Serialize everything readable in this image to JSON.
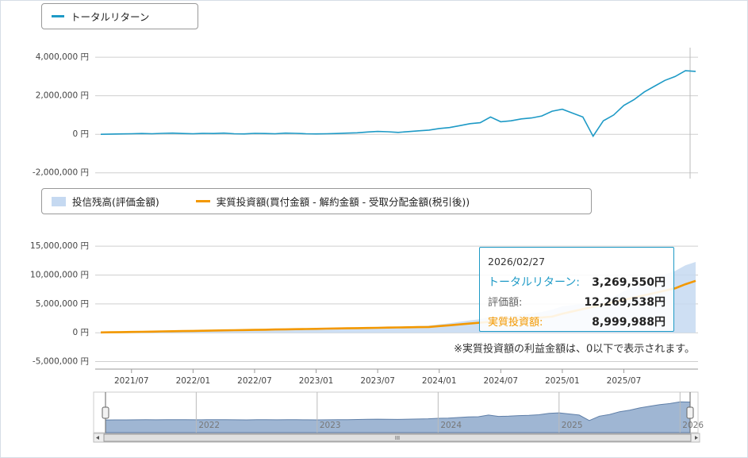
{
  "chart_data": [
    {
      "type": "line",
      "legend": "トータルリターン",
      "x": [
        "2021/04",
        "2021/05",
        "2021/06",
        "2021/07",
        "2021/08",
        "2021/09",
        "2021/10",
        "2021/11",
        "2021/12",
        "2022/01",
        "2022/02",
        "2022/03",
        "2022/04",
        "2022/05",
        "2022/06",
        "2022/07",
        "2022/08",
        "2022/09",
        "2022/10",
        "2022/11",
        "2022/12",
        "2023/01",
        "2023/02",
        "2023/03",
        "2023/04",
        "2023/05",
        "2023/06",
        "2023/07",
        "2023/08",
        "2023/09",
        "2023/10",
        "2023/11",
        "2023/12",
        "2024/01",
        "2024/02",
        "2024/03",
        "2024/04",
        "2024/05",
        "2024/06",
        "2024/07",
        "2024/08",
        "2024/09",
        "2024/10",
        "2024/11",
        "2024/12",
        "2025/01",
        "2025/02",
        "2025/03",
        "2025/04",
        "2025/05",
        "2025/06",
        "2025/07",
        "2025/08",
        "2025/09",
        "2025/10",
        "2025/11",
        "2025/12",
        "2026/01",
        "2026/02"
      ],
      "series": [
        {
          "name": "トータルリターン",
          "color": "#1e9ac6",
          "values": [
            0,
            10000,
            20000,
            30000,
            40000,
            30000,
            50000,
            60000,
            40000,
            30000,
            50000,
            40000,
            60000,
            30000,
            20000,
            50000,
            40000,
            30000,
            60000,
            50000,
            30000,
            20000,
            30000,
            40000,
            60000,
            80000,
            120000,
            150000,
            130000,
            100000,
            140000,
            180000,
            220000,
            300000,
            350000,
            450000,
            550000,
            600000,
            900000,
            650000,
            700000,
            800000,
            850000,
            950000,
            1200000,
            1300000,
            1100000,
            900000,
            -100000,
            700000,
            1000000,
            1500000,
            1800000,
            2200000,
            2500000,
            2800000,
            3000000,
            3300000,
            3269550
          ]
        }
      ],
      "ylim": [
        -2300000,
        4500000
      ],
      "yticks": [
        {
          "value": 4000000,
          "label": "4,000,000 円"
        },
        {
          "value": 2000000,
          "label": "2,000,000 円"
        },
        {
          "value": 0,
          "label": "0 円"
        },
        {
          "value": -2000000,
          "label": "-2,000,000 円"
        }
      ],
      "grid": true
    },
    {
      "type": "area_line",
      "x": [
        "2021/04",
        "2021/05",
        "2021/06",
        "2021/07",
        "2021/08",
        "2021/09",
        "2021/10",
        "2021/11",
        "2021/12",
        "2022/01",
        "2022/02",
        "2022/03",
        "2022/04",
        "2022/05",
        "2022/06",
        "2022/07",
        "2022/08",
        "2022/09",
        "2022/10",
        "2022/11",
        "2022/12",
        "2023/01",
        "2023/02",
        "2023/03",
        "2023/04",
        "2023/05",
        "2023/06",
        "2023/07",
        "2023/08",
        "2023/09",
        "2023/10",
        "2023/11",
        "2023/12",
        "2024/01",
        "2024/02",
        "2024/03",
        "2024/04",
        "2024/05",
        "2024/06",
        "2024/07",
        "2024/08",
        "2024/09",
        "2024/10",
        "2024/11",
        "2024/12",
        "2025/01",
        "2025/02",
        "2025/03",
        "2025/04",
        "2025/05",
        "2025/06",
        "2025/07",
        "2025/08",
        "2025/09",
        "2025/10",
        "2025/11",
        "2025/12",
        "2026/01",
        "2026/02"
      ],
      "series": [
        {
          "name": "投信残高(評価金額)",
          "color": "#c5d9f1",
          "kind": "area",
          "values": [
            50000,
            90000,
            130000,
            170000,
            210000,
            230000,
            280000,
            320000,
            330000,
            350000,
            400000,
            420000,
            470000,
            470000,
            490000,
            550000,
            570000,
            590000,
            650000,
            670000,
            680000,
            700000,
            740000,
            780000,
            830000,
            880000,
            950000,
            1010000,
            1020000,
            1020000,
            1090000,
            1160000,
            1230000,
            1450000,
            1650000,
            1900000,
            2150000,
            2350000,
            2800000,
            2700000,
            2900000,
            3150000,
            3350000,
            3600000,
            4000000,
            4600000,
            4800000,
            5000000,
            4400000,
            5600000,
            6300000,
            7200000,
            7900000,
            8700000,
            9400000,
            10100000,
            10700000,
            11700000,
            12269538
          ]
        },
        {
          "name": "実質投資額(買付金額 - 解約金額 - 受取分配金額(税引後))",
          "color": "#f39800",
          "kind": "line",
          "values": [
            50000,
            80000,
            110000,
            140000,
            170000,
            200000,
            230000,
            260000,
            290000,
            320000,
            350000,
            380000,
            410000,
            440000,
            470000,
            500000,
            530000,
            560000,
            590000,
            620000,
            650000,
            680000,
            710000,
            740000,
            770000,
            800000,
            830000,
            860000,
            890000,
            920000,
            950000,
            980000,
            1010000,
            1150000,
            1300000,
            1450000,
            1600000,
            1750000,
            1900000,
            2050000,
            2200000,
            2350000,
            2500000,
            2650000,
            2800000,
            3300000,
            3700000,
            4100000,
            4500000,
            4900000,
            5300000,
            5700000,
            6100000,
            6500000,
            6900000,
            7300000,
            7700000,
            8400000,
            8999988
          ]
        }
      ],
      "ylim": [
        -6300000,
        16400000
      ],
      "yticks": [
        {
          "value": 15000000,
          "label": "15,000,000 円"
        },
        {
          "value": 10000000,
          "label": "10,000,000 円"
        },
        {
          "value": 5000000,
          "label": "5,000,000 円"
        },
        {
          "value": 0,
          "label": "0 円"
        },
        {
          "value": -5000000,
          "label": "-5,000,000 円"
        }
      ],
      "xticks": [
        "2021/07",
        "2022/01",
        "2022/07",
        "2023/01",
        "2023/07",
        "2024/01",
        "2024/07",
        "2025/01",
        "2025/07"
      ],
      "grid": true,
      "note": "※実質投資額の利益金額は、0以下で表示されます。",
      "tooltip": {
        "date": "2026/02/27",
        "rows": [
          {
            "label": "トータルリターン:",
            "value": "3,269,550円"
          },
          {
            "label": "評価額:",
            "value": "12,269,538円"
          },
          {
            "label": "実質投資額:",
            "value": "8,999,988円"
          }
        ]
      }
    }
  ],
  "navigator": {
    "years": [
      "2022",
      "2023",
      "2024",
      "2025",
      "2026"
    ],
    "scrollbar_grip": "III"
  }
}
